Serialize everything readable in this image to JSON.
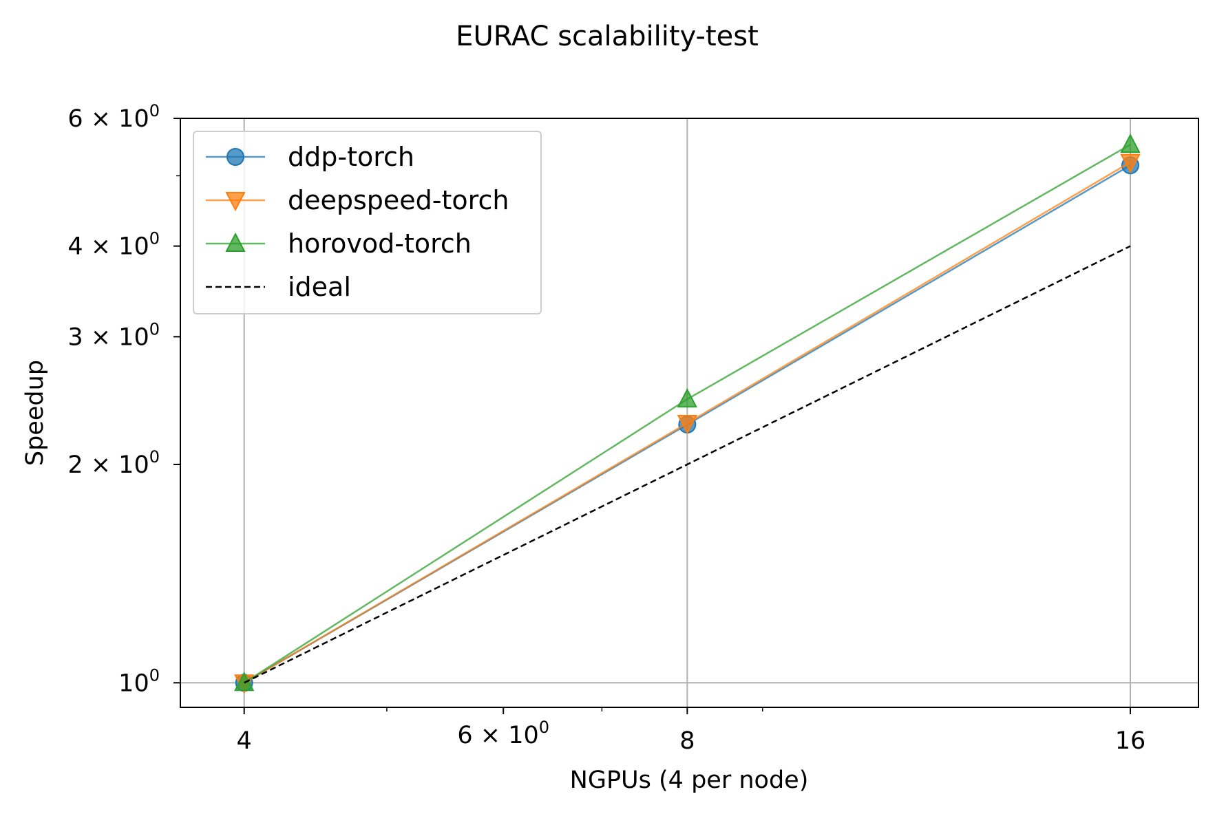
{
  "chart_data": {
    "type": "line",
    "title": "EURAC scalability-test",
    "xlabel": "NGPUs (4 per node)",
    "ylabel": "Speedup",
    "xscale": "log",
    "yscale": "log",
    "xlim": [
      3.62,
      17.8
    ],
    "ylim": [
      0.925,
      6.0
    ],
    "grid": true,
    "legend_position": "top-left",
    "x": [
      4,
      8,
      16
    ],
    "x_ticks": [
      {
        "value": 4,
        "base": "4",
        "exp": ""
      },
      {
        "value": 6,
        "base": "6 × 10",
        "exp": "0"
      },
      {
        "value": 8,
        "base": "8",
        "exp": ""
      },
      {
        "value": 16,
        "base": "16",
        "exp": ""
      }
    ],
    "x_major_grid": [
      4,
      8,
      16
    ],
    "x_minor_ticks": [
      5,
      7,
      9
    ],
    "y_ticks": [
      {
        "value": 1,
        "base": "10",
        "exp": "0"
      },
      {
        "value": 2,
        "base": "2 × 10",
        "exp": "0"
      },
      {
        "value": 3,
        "base": "3 × 10",
        "exp": "0"
      },
      {
        "value": 4,
        "base": "4 × 10",
        "exp": "0"
      },
      {
        "value": 6,
        "base": "6 × 10",
        "exp": "0"
      }
    ],
    "y_major_grid": [
      1
    ],
    "y_minor_ticks": [
      5
    ],
    "series": [
      {
        "name": "ddp-torch",
        "values": [
          1.0,
          2.27,
          5.17
        ],
        "color": "#1f77b4",
        "marker": "circle",
        "linestyle": "solid"
      },
      {
        "name": "deepspeed-torch",
        "values": [
          1.0,
          2.28,
          5.22
        ],
        "color": "#ff7f0e",
        "marker": "triangle-down",
        "linestyle": "solid"
      },
      {
        "name": "horovod-torch",
        "values": [
          1.0,
          2.46,
          5.52
        ],
        "color": "#2ca02c",
        "marker": "triangle-up",
        "linestyle": "solid"
      },
      {
        "name": "ideal",
        "values": [
          1.0,
          2.0,
          4.0
        ],
        "color": "#000000",
        "marker": "none",
        "linestyle": "dashed"
      }
    ]
  }
}
